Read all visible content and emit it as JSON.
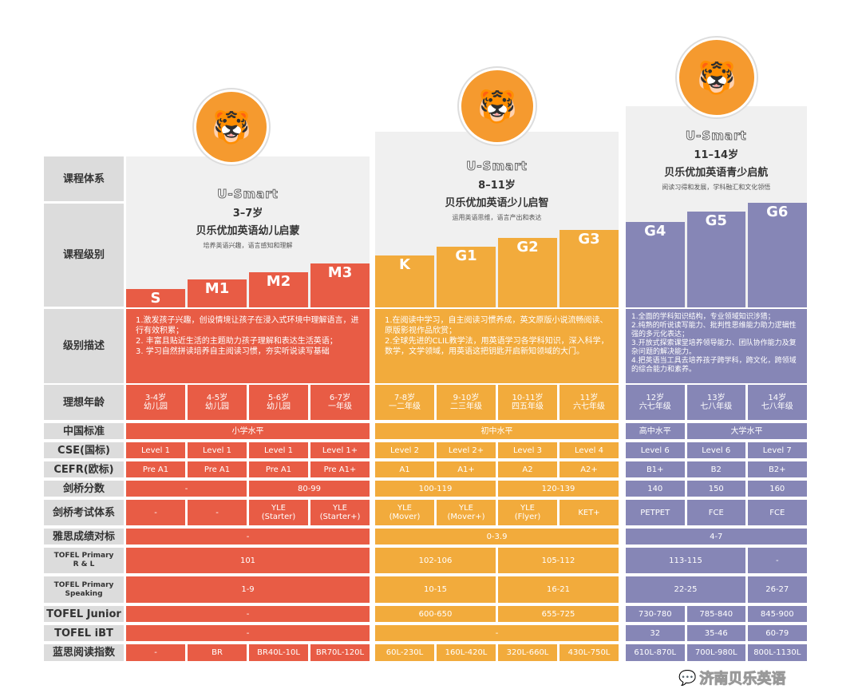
{
  "colors": {
    "red": "#e85c45",
    "orange": "#f2ab3c",
    "purple": "#8686b6",
    "label": "#dcdcdc"
  },
  "header_labels": {
    "system": "课程体系",
    "level": "课程级别"
  },
  "programs": [
    {
      "brand": "U-Smart",
      "age": "3–7岁",
      "name": "贝乐优加英语幼儿启蒙",
      "subtitle": "培养英语兴趣，语言感知和理解",
      "levels": [
        "S",
        "M1",
        "M2",
        "M3"
      ],
      "mascot_icon": "tiger-mascot-with-bowtie",
      "description": "1.激发孩子兴趣，创设情境让孩子在浸入式环境中理解语言，进行有效积累；\n2. 丰富且贴近生活的主题助力孩子理解和表达生活英语；\n3. 学习自然拼读培养自主阅读习惯，夯实听说读写基础"
    },
    {
      "brand": "U-Smart",
      "age": "8–11岁",
      "name": "贝乐优加英语少儿启智",
      "subtitle": "运用英语思维，语言产出和表达",
      "levels": [
        "K",
        "G1",
        "G2",
        "G3"
      ],
      "mascot_icon": "tiger-mascot-reading-book",
      "description": "1.在阅读中学习，自主阅读习惯养成，英文原版小说流畅阅读、原版影视作品欣赏；\n2.全球先进的CLIL教学法，用英语学习各学科知识，深入科学，数学，文学领域，用英语这把钥匙开启新知领域的大门。"
    },
    {
      "brand": "U-Smart",
      "age": "11–14岁",
      "name": "贝乐优加英语青少启航",
      "subtitle": "阅读习得和发展，学科融汇和文化领悟",
      "levels": [
        "G4",
        "G5",
        "G6"
      ],
      "mascot_icon": "tiger-mascot-astronaut",
      "description": "1.全面的学科知识结构，专业领域知识涉猎；\n2.纯熟的听说读写能力、批判性思维能力助力逻辑性强的多元化表达；\n3.开放式探索课堂培养领导能力、团队协作能力及复杂问题的解决能力。\n4.把英语当工具去培养孩子跨学科，跨文化，跨领域的综合能力和素养。"
    }
  ],
  "description_label": "级别描述",
  "rows": [
    {
      "label": "理想年龄",
      "cells": [
        [
          {
            "t": "3-4岁\n幼儿园",
            "s": 1
          },
          {
            "t": "4-5岁\n幼儿园",
            "s": 1
          },
          {
            "t": "5-6岁\n幼儿园",
            "s": 1
          },
          {
            "t": "6-7岁\n一年级",
            "s": 1
          }
        ],
        [
          {
            "t": "7-8岁\n一二年级",
            "s": 1
          },
          {
            "t": "9-10岁\n二三年级",
            "s": 1
          },
          {
            "t": "10-11岁\n四五年级",
            "s": 1
          },
          {
            "t": "11岁\n六七年级",
            "s": 1
          }
        ],
        [
          {
            "t": "12岁\n六七年级",
            "s": 1
          },
          {
            "t": "13岁\n七八年级",
            "s": 1
          },
          {
            "t": "14岁\n七八年级",
            "s": 1
          }
        ]
      ]
    },
    {
      "label": "中国标准",
      "cells": [
        [
          {
            "t": "小学水平",
            "s": 4
          }
        ],
        [
          {
            "t": "初中水平",
            "s": 4
          }
        ],
        [
          {
            "t": "高中水平",
            "s": 1
          },
          {
            "t": "大学水平",
            "s": 2
          }
        ]
      ]
    },
    {
      "label": "CSE(国标)",
      "cells": [
        [
          {
            "t": "Level 1",
            "s": 1
          },
          {
            "t": "Level 1",
            "s": 1
          },
          {
            "t": "Level 1",
            "s": 1
          },
          {
            "t": "Level 1+",
            "s": 1
          }
        ],
        [
          {
            "t": "Level 2",
            "s": 1
          },
          {
            "t": "Level 2+",
            "s": 1
          },
          {
            "t": "Level 3",
            "s": 1
          },
          {
            "t": "Level 4",
            "s": 1
          }
        ],
        [
          {
            "t": "Level 6",
            "s": 1
          },
          {
            "t": "Level 6",
            "s": 1
          },
          {
            "t": "Level 7",
            "s": 1
          }
        ]
      ]
    },
    {
      "label": "CEFR(欧标)",
      "cells": [
        [
          {
            "t": "Pre A1",
            "s": 1
          },
          {
            "t": "Pre A1",
            "s": 1
          },
          {
            "t": "Pre A1",
            "s": 1
          },
          {
            "t": "Pre A1+",
            "s": 1
          }
        ],
        [
          {
            "t": "A1",
            "s": 1
          },
          {
            "t": "A1+",
            "s": 1
          },
          {
            "t": "A2",
            "s": 1
          },
          {
            "t": "A2+",
            "s": 1
          }
        ],
        [
          {
            "t": "B1+",
            "s": 1
          },
          {
            "t": "B2",
            "s": 1
          },
          {
            "t": "B2+",
            "s": 1
          }
        ]
      ]
    },
    {
      "label": "剑桥分数",
      "cells": [
        [
          {
            "t": "-",
            "s": 2
          },
          {
            "t": "80-99",
            "s": 2
          }
        ],
        [
          {
            "t": "100-119",
            "s": 2
          },
          {
            "t": "120-139",
            "s": 2
          }
        ],
        [
          {
            "t": "140",
            "s": 1
          },
          {
            "t": "150",
            "s": 1
          },
          {
            "t": "160",
            "s": 1
          }
        ]
      ]
    },
    {
      "label": "剑桥考试体系",
      "cells": [
        [
          {
            "t": "-",
            "s": 1
          },
          {
            "t": "-",
            "s": 1
          },
          {
            "t": "YLE\n(Starter)",
            "s": 1
          },
          {
            "t": "YLE\n(Starter+)",
            "s": 1
          }
        ],
        [
          {
            "t": "YLE\n(Mover)",
            "s": 1
          },
          {
            "t": "YLE\n(Mover+)",
            "s": 1
          },
          {
            "t": "YLE\n(Flyer)",
            "s": 1
          },
          {
            "t": "KET+",
            "s": 1
          }
        ],
        [
          {
            "t": "PETPET",
            "s": 1
          },
          {
            "t": "FCE",
            "s": 1
          },
          {
            "t": "FCE",
            "s": 1
          }
        ]
      ]
    },
    {
      "label": "雅思成绩对标",
      "cells": [
        [
          {
            "t": "-",
            "s": 4
          }
        ],
        [
          {
            "t": "0-3.9",
            "s": 4
          }
        ],
        [
          {
            "t": "4-7",
            "s": 3
          }
        ]
      ]
    },
    {
      "label": "TOFEL Primary\nR & L",
      "small": true,
      "cells": [
        [
          {
            "t": "101",
            "s": 4
          }
        ],
        [
          {
            "t": "102-106",
            "s": 2
          },
          {
            "t": "105-112",
            "s": 2
          }
        ],
        [
          {
            "t": "113-115",
            "s": 2
          },
          {
            "t": "-",
            "s": 1
          }
        ]
      ]
    },
    {
      "label": "TOFEL Primary\nSpeaking",
      "small": true,
      "cells": [
        [
          {
            "t": "1-9",
            "s": 4
          }
        ],
        [
          {
            "t": "10-15",
            "s": 2
          },
          {
            "t": "16-21",
            "s": 2
          }
        ],
        [
          {
            "t": "22-25",
            "s": 2
          },
          {
            "t": "26-27",
            "s": 1
          }
        ]
      ]
    },
    {
      "label": "TOFEL Junior",
      "cells": [
        [
          {
            "t": "-",
            "s": 4
          }
        ],
        [
          {
            "t": "600-650",
            "s": 2
          },
          {
            "t": "655-725",
            "s": 2
          }
        ],
        [
          {
            "t": "730-780",
            "s": 1
          },
          {
            "t": "785-840",
            "s": 1
          },
          {
            "t": "845-900",
            "s": 1
          }
        ]
      ]
    },
    {
      "label": "TOFEL iBT",
      "cells": [
        [
          {
            "t": "-",
            "s": 4
          }
        ],
        [
          {
            "t": "-",
            "s": 4
          }
        ],
        [
          {
            "t": "32",
            "s": 1
          },
          {
            "t": "35-46",
            "s": 1
          },
          {
            "t": "60-79",
            "s": 1
          }
        ]
      ]
    },
    {
      "label": "蓝思阅读指数",
      "cells": [
        [
          {
            "t": "-",
            "s": 1
          },
          {
            "t": "BR",
            "s": 1
          },
          {
            "t": "BR40L-10L",
            "s": 1
          },
          {
            "t": "BR70L-120L",
            "s": 1
          }
        ],
        [
          {
            "t": "60L-230L",
            "s": 1
          },
          {
            "t": "160L-420L",
            "s": 1
          },
          {
            "t": "320L-660L",
            "s": 1
          },
          {
            "t": "430L-750L",
            "s": 1
          }
        ],
        [
          {
            "t": "610L-870L",
            "s": 1
          },
          {
            "t": "700L-980L",
            "s": 1
          },
          {
            "t": "800L-1130L",
            "s": 1
          }
        ]
      ]
    }
  ],
  "watermark": {
    "icon": "wechat-icon",
    "text": "济南贝乐英语"
  }
}
